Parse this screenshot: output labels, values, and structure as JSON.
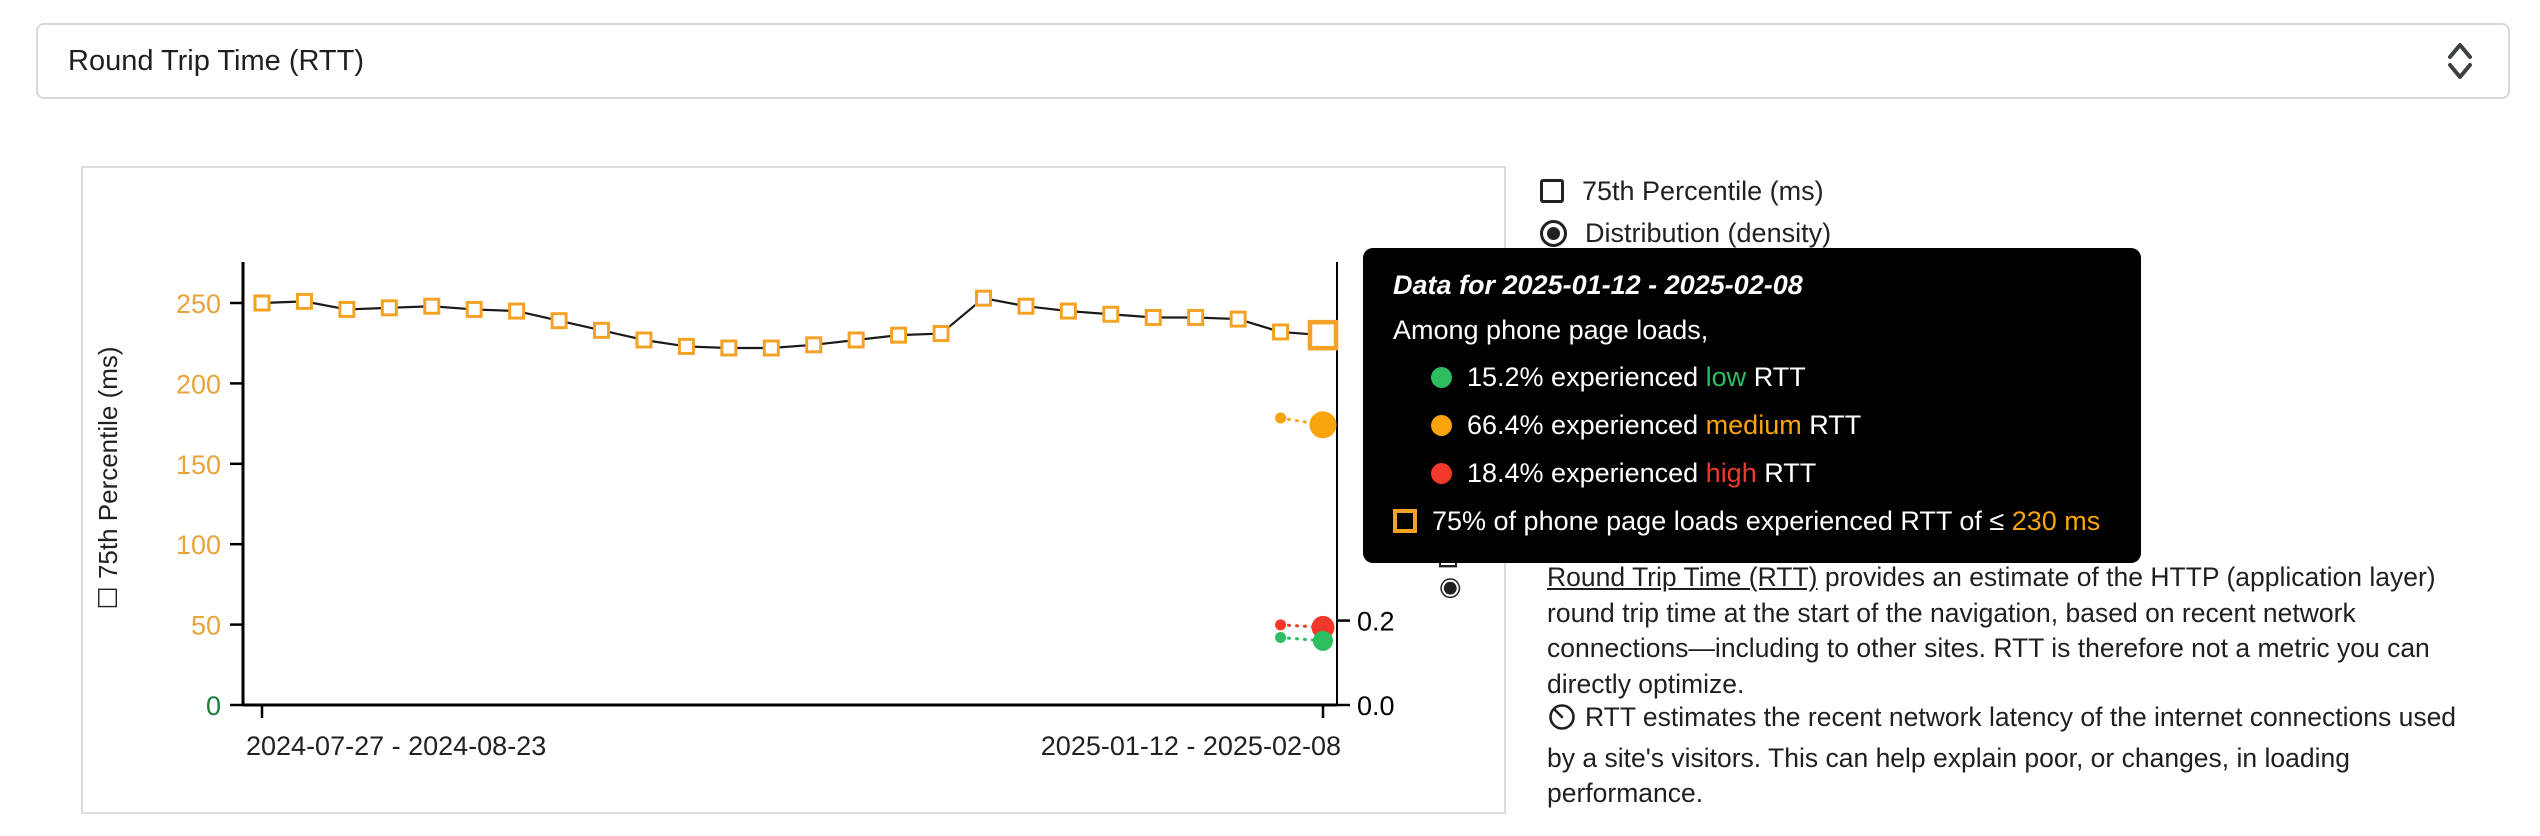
{
  "colors": {
    "low": "#2DBE60",
    "medium": "#F9A40C",
    "high": "#F2372B",
    "axis_green": "#188038",
    "axis_orange": "#E8A33D",
    "marker": "#F4A226",
    "line": "#1A1A1A",
    "tooltip_bg": "#000000",
    "text": "#202124"
  },
  "icons": {
    "checkbox_glyph": "☐",
    "radio_glyph": "◉"
  },
  "metric_selector": {
    "value": "Round Trip Time (RTT)"
  },
  "series_toggles": [
    {
      "label": "75th Percentile (ms)",
      "type": "checkbox",
      "checked": false
    },
    {
      "label": "Distribution (density)",
      "type": "radio",
      "checked": true
    }
  ],
  "tooltip": {
    "title": "Data for 2025-01-12 - 2025-02-08",
    "subtitle": "Among phone page loads,",
    "rows": [
      {
        "prefix": "15.2% experienced ",
        "level": "low",
        "suffix": " RTT"
      },
      {
        "prefix": "66.4% experienced ",
        "level": "medium",
        "suffix": " RTT"
      },
      {
        "prefix": "18.4% experienced ",
        "level": "high",
        "suffix": " RTT"
      }
    ],
    "p75_prefix": "75% of phone page loads experienced RTT of ≤ ",
    "p75_value": "230 ms"
  },
  "description": {
    "link_text": "Round Trip Time (RTT)",
    "body_text": " provides an estimate of the HTTP (application layer) round trip time at the start of the navigation, based on recent network connections—including to other sites. RTT is therefore not a metric you can directly optimize."
  },
  "note": {
    "text": "RTT estimates the recent network latency of the internet connections used by a site's visitors. This can help explain poor, or changes, in loading performance."
  },
  "chart_data": {
    "type": "line",
    "title": "Round Trip Time (RTT)",
    "x_axis": {
      "tick_labels": [
        "2024-07-27 - 2024-08-23",
        "2025-01-12 - 2025-02-08"
      ]
    },
    "left_axis": {
      "label": "75th Percentile (ms)",
      "ticks": [
        0,
        50,
        100,
        150,
        200,
        250
      ],
      "range": [
        0,
        275
      ]
    },
    "right_axis": {
      "label": "Distribution (density)",
      "ticks": [
        0,
        0.2
      ],
      "range": [
        0,
        1.05
      ]
    },
    "p75_series": {
      "name": "75th Percentile (ms)",
      "unit": "ms",
      "values": [
        250,
        251,
        246,
        247,
        248,
        246,
        245,
        239,
        233,
        227,
        223,
        222,
        222,
        224,
        227,
        230,
        231,
        253,
        248,
        245,
        243,
        241,
        241,
        240,
        232,
        230
      ],
      "highlighted_index": 25,
      "highlighted_value": 230
    },
    "density_series": [
      {
        "name": "medium",
        "color_key": "medium",
        "points": [
          0.68,
          0.664
        ]
      },
      {
        "name": "high",
        "color_key": "high",
        "points": [
          0.19,
          0.184
        ]
      },
      {
        "name": "low",
        "color_key": "low",
        "points": [
          0.16,
          0.152
        ]
      }
    ]
  }
}
